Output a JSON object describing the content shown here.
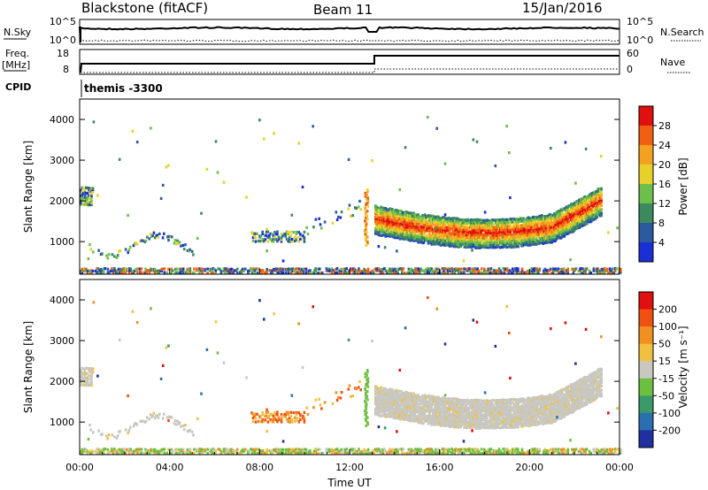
{
  "header": {
    "station": "Blackstone (fitACF)",
    "beam": "Beam 11",
    "date": "15/Jan/2016"
  },
  "top_panel": {
    "left_label": "N.Sky",
    "right_label": "N.Search",
    "left_ticks": [
      "10^5",
      "10^0"
    ],
    "right_ticks": [
      "10^5",
      "10^0"
    ]
  },
  "freq_panel": {
    "left_label_1": "Freq.",
    "left_label_2": "[MHz]",
    "right_label": "Nave",
    "left_ticks": [
      "18",
      "8"
    ],
    "right_ticks": [
      "60",
      "0"
    ]
  },
  "cpid": {
    "label": "CPID",
    "value": "themis -3300"
  },
  "chart_data": [
    {
      "type": "heatmap",
      "name": "power",
      "ylabel": "Slant Range [km]",
      "ylim": [
        200,
        4500
      ],
      "yticks": [
        "1000",
        "2000",
        "3000",
        "4000"
      ],
      "colorbar_label": "Power [dB]",
      "colorbar_ticks": [
        "4",
        "8",
        "12",
        "16",
        "20",
        "24",
        "28"
      ],
      "colors": [
        "#1a2fd6",
        "#2c5aa0",
        "#3c8a5c",
        "#6cbf4a",
        "#e8d02a",
        "#f4a020",
        "#f06010",
        "#e01010"
      ]
    },
    {
      "type": "heatmap",
      "name": "velocity",
      "ylabel": "Slant Range [km]",
      "ylim": [
        200,
        4500
      ],
      "yticks": [
        "1000",
        "2000",
        "3000",
        "4000"
      ],
      "colorbar_label": "Velocity [m s⁻¹]",
      "colorbar_ticks": [
        "200",
        "100",
        "50",
        "15",
        "-15",
        "-50",
        "-100",
        "-200"
      ],
      "colors": [
        "#2030a0",
        "#2a70b0",
        "#3a9a6a",
        "#6cc040",
        "#c8c8c0",
        "#f0c040",
        "#f09020",
        "#f05010",
        "#e01010"
      ]
    }
  ],
  "xaxis": {
    "label": "Time UT",
    "ticks": [
      "00:00",
      "04:00",
      "08:00",
      "12:00",
      "16:00",
      "20:00",
      "00:00"
    ]
  }
}
